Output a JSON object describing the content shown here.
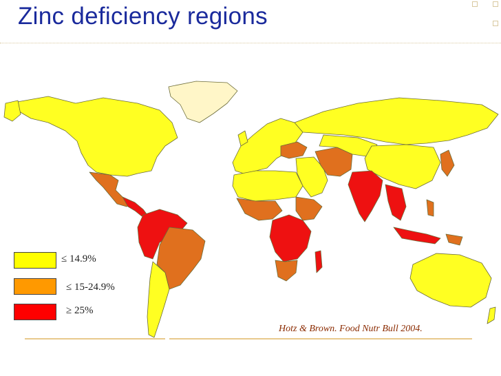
{
  "slide": {
    "title": "Zinc deficiency regions",
    "citation": "Hotz & Brown. Food Nutr Bull 2004."
  },
  "legend": [
    {
      "label": "≤ 14.9%",
      "color": "#ffff00"
    },
    {
      "label": "≤ 15-24.9%",
      "color": "#ff9900"
    },
    {
      "label": "≥ 25%",
      "color": "#ff0000"
    }
  ],
  "map_colors": {
    "ocean": "#ffffff",
    "no_data": "#fff6c8",
    "low": "#ffff22",
    "medium": "#e0701e",
    "high": "#ee1111",
    "border": "#6b6b38"
  }
}
